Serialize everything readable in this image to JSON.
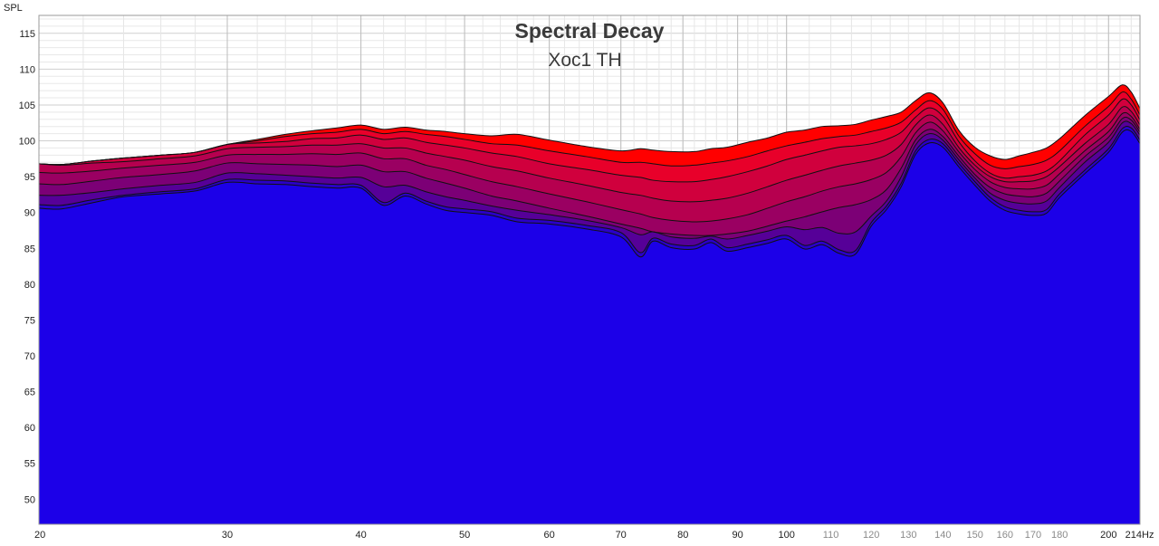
{
  "chart_data": {
    "type": "area",
    "title": "Spectral Decay",
    "subtitle": "Xoc1 TH",
    "ylabel": "SPL",
    "xlabel": "Hz",
    "x_scale": "log",
    "xlim": [
      20,
      214
    ],
    "ylim": [
      46.5,
      117.5
    ],
    "grid": true,
    "y_ticks": [
      50,
      55,
      60,
      65,
      70,
      75,
      80,
      85,
      90,
      95,
      100,
      105,
      110,
      115
    ],
    "x_ticks": [
      {
        "value": 20,
        "label": "20",
        "minor": false
      },
      {
        "value": 30,
        "label": "30",
        "minor": false
      },
      {
        "value": 40,
        "label": "40",
        "minor": false
      },
      {
        "value": 50,
        "label": "50",
        "minor": false
      },
      {
        "value": 60,
        "label": "60",
        "minor": false
      },
      {
        "value": 70,
        "label": "70",
        "minor": false
      },
      {
        "value": 80,
        "label": "80",
        "minor": false
      },
      {
        "value": 90,
        "label": "90",
        "minor": false
      },
      {
        "value": 100,
        "label": "100",
        "minor": false
      },
      {
        "value": 110,
        "label": "110",
        "minor": true
      },
      {
        "value": 120,
        "label": "120",
        "minor": true
      },
      {
        "value": 130,
        "label": "130",
        "minor": true
      },
      {
        "value": 140,
        "label": "140",
        "minor": true
      },
      {
        "value": 150,
        "label": "150",
        "minor": true
      },
      {
        "value": 160,
        "label": "160",
        "minor": true
      },
      {
        "value": 170,
        "label": "170",
        "minor": true
      },
      {
        "value": 180,
        "label": "180",
        "minor": true
      },
      {
        "value": 200,
        "label": "200",
        "minor": false
      },
      {
        "value": 214,
        "label": "214",
        "minor": false
      }
    ],
    "x": [
      20,
      21,
      22.5,
      24,
      26,
      28,
      30,
      32,
      34,
      36,
      38,
      40,
      42,
      44,
      46,
      48,
      50,
      53,
      56,
      60,
      65,
      70,
      73,
      75,
      78,
      82,
      85,
      88,
      92,
      96,
      100,
      104,
      108,
      112,
      116,
      120,
      124,
      128,
      132,
      136,
      140,
      145,
      150,
      155,
      160,
      165,
      170,
      175,
      180,
      190,
      200,
      206,
      210,
      214
    ],
    "series": [
      {
        "color": "#ff0000",
        "values": [
          96.8,
          96.7,
          97.2,
          97.6,
          98.0,
          98.4,
          99.5,
          100.2,
          100.9,
          101.4,
          101.8,
          102.2,
          101.6,
          101.9,
          101.5,
          101.3,
          101.0,
          100.7,
          100.9,
          100.1,
          99.2,
          98.6,
          98.9,
          98.7,
          98.5,
          98.5,
          98.9,
          99.1,
          99.8,
          100.4,
          101.2,
          101.5,
          102.0,
          102.1,
          102.3,
          102.9,
          103.4,
          104.0,
          105.6,
          106.7,
          105.3,
          101.4,
          99.1,
          97.9,
          97.4,
          97.9,
          98.4,
          99.0,
          100.3,
          103.5,
          106.2,
          107.8,
          106.8,
          104.5
        ]
      },
      {
        "color": "#e8002a",
        "values": [
          96.8,
          96.7,
          97.2,
          97.6,
          98.0,
          98.4,
          99.5,
          100.0,
          100.6,
          101.0,
          101.2,
          101.6,
          101.0,
          101.3,
          100.9,
          100.6,
          100.2,
          99.6,
          99.4,
          98.6,
          97.8,
          97.0,
          97.0,
          96.8,
          96.5,
          96.6,
          96.9,
          97.2,
          97.8,
          98.6,
          99.3,
          99.8,
          100.3,
          100.6,
          100.8,
          101.3,
          101.8,
          102.6,
          104.3,
          105.6,
          104.4,
          100.6,
          98.2,
          96.6,
          96.1,
          96.4,
          96.7,
          97.3,
          98.6,
          102.0,
          104.8,
          106.8,
          105.8,
          103.6
        ]
      },
      {
        "color": "#d0003d",
        "values": [
          96.8,
          96.7,
          97.2,
          97.6,
          98.0,
          98.4,
          99.5,
          99.7,
          99.9,
          100.3,
          100.4,
          100.8,
          100.2,
          100.4,
          99.8,
          99.4,
          99.0,
          98.3,
          97.8,
          96.8,
          96.0,
          95.2,
          94.9,
          94.5,
          94.3,
          94.3,
          94.6,
          95.0,
          95.7,
          96.5,
          97.4,
          98.0,
          98.6,
          99.1,
          99.3,
          99.6,
          100.2,
          101.2,
          103.3,
          104.6,
          103.4,
          99.8,
          97.2,
          95.5,
          94.8,
          95.0,
          95.2,
          95.8,
          97.2,
          100.8,
          103.6,
          105.8,
          105.0,
          102.9
        ]
      },
      {
        "color": "#b6004f",
        "values": [
          96.8,
          96.6,
          96.9,
          97.1,
          97.5,
          97.9,
          98.9,
          99.1,
          99.2,
          99.4,
          99.4,
          99.6,
          99.0,
          99.0,
          98.3,
          97.8,
          97.3,
          96.4,
          95.8,
          94.8,
          93.8,
          92.8,
          92.4,
          92.0,
          91.6,
          91.5,
          91.7,
          92.0,
          92.7,
          93.6,
          94.5,
          95.2,
          95.9,
          96.5,
          96.9,
          97.3,
          98.0,
          99.5,
          102.2,
          103.6,
          102.3,
          99.0,
          96.6,
          95.0,
          94.3,
          94.3,
          94.4,
          95.0,
          96.4,
          99.6,
          102.3,
          104.7,
          104.1,
          102.2
        ]
      },
      {
        "color": "#9a0062",
        "values": [
          95.6,
          95.5,
          95.8,
          96.2,
          96.6,
          97.0,
          98.0,
          98.1,
          98.1,
          98.2,
          98.1,
          98.3,
          97.5,
          97.5,
          96.6,
          96.0,
          95.3,
          94.3,
          93.6,
          92.6,
          91.5,
          90.4,
          89.8,
          89.3,
          88.9,
          88.7,
          88.8,
          89.1,
          89.7,
          90.6,
          91.5,
          92.2,
          93.0,
          93.6,
          94.0,
          94.6,
          95.6,
          97.8,
          101.1,
          102.6,
          101.4,
          98.4,
          96.0,
          94.3,
          93.5,
          93.3,
          93.3,
          93.8,
          95.4,
          98.6,
          101.3,
          103.8,
          103.4,
          101.6
        ]
      },
      {
        "color": "#7c0076",
        "values": [
          94.0,
          93.9,
          94.4,
          94.9,
          95.3,
          95.8,
          96.9,
          96.8,
          96.7,
          96.6,
          96.4,
          96.6,
          95.7,
          95.7,
          94.8,
          94.1,
          93.4,
          92.3,
          91.6,
          90.6,
          89.5,
          88.4,
          87.8,
          87.3,
          87.0,
          86.8,
          86.8,
          87.0,
          87.4,
          88.1,
          88.8,
          89.4,
          90.1,
          90.7,
          91.1,
          91.8,
          93.2,
          96.2,
          100.1,
          101.6,
          100.6,
          97.8,
          95.3,
          93.5,
          92.6,
          92.3,
          92.2,
          92.7,
          94.4,
          97.8,
          100.5,
          103.1,
          102.9,
          101.2
        ]
      },
      {
        "color": "#560098",
        "values": [
          92.4,
          92.4,
          92.8,
          93.3,
          93.8,
          94.2,
          95.5,
          95.4,
          95.2,
          95.0,
          94.8,
          94.9,
          93.6,
          93.8,
          92.9,
          92.2,
          91.7,
          90.9,
          90.3,
          89.7,
          88.9,
          87.9,
          86.9,
          87.3,
          86.6,
          86.4,
          86.7,
          86.3,
          86.8,
          87.4,
          88.0,
          87.6,
          87.9,
          87.1,
          87.3,
          89.5,
          91.6,
          95.0,
          99.4,
          101.0,
          100.1,
          97.3,
          94.8,
          92.7,
          91.7,
          91.3,
          91.2,
          91.6,
          93.5,
          97.0,
          99.8,
          102.5,
          102.4,
          100.8
        ]
      },
      {
        "color": "#2a00c8",
        "values": [
          91.1,
          91.0,
          91.8,
          92.4,
          92.9,
          93.3,
          94.6,
          94.5,
          94.4,
          94.1,
          93.9,
          93.8,
          91.4,
          92.7,
          91.6,
          90.8,
          90.5,
          90.1,
          89.2,
          88.9,
          88.2,
          87.2,
          84.4,
          86.4,
          85.6,
          85.4,
          86.3,
          85.1,
          85.6,
          86.2,
          86.8,
          85.4,
          86.0,
          84.8,
          84.7,
          88.6,
          90.9,
          94.1,
          98.6,
          100.2,
          99.6,
          96.8,
          94.3,
          92.1,
          90.8,
          90.3,
          90.1,
          90.4,
          92.6,
          95.9,
          98.9,
          101.7,
          101.8,
          100.1
        ]
      },
      {
        "color": "#1c00e8",
        "values": [
          90.6,
          90.5,
          91.4,
          92.2,
          92.6,
          93.0,
          94.2,
          94.0,
          93.9,
          93.6,
          93.4,
          93.4,
          91.0,
          92.3,
          91.2,
          90.3,
          90.0,
          89.6,
          88.7,
          88.4,
          87.7,
          86.6,
          83.8,
          86.0,
          85.1,
          84.9,
          85.8,
          84.6,
          85.1,
          85.7,
          86.3,
          84.9,
          85.5,
          84.3,
          84.2,
          88.1,
          90.4,
          93.6,
          98.1,
          99.7,
          99.1,
          96.3,
          93.8,
          91.6,
          90.3,
          89.8,
          89.6,
          89.9,
          92.1,
          95.4,
          98.4,
          101.2,
          101.3,
          99.6
        ]
      }
    ]
  }
}
